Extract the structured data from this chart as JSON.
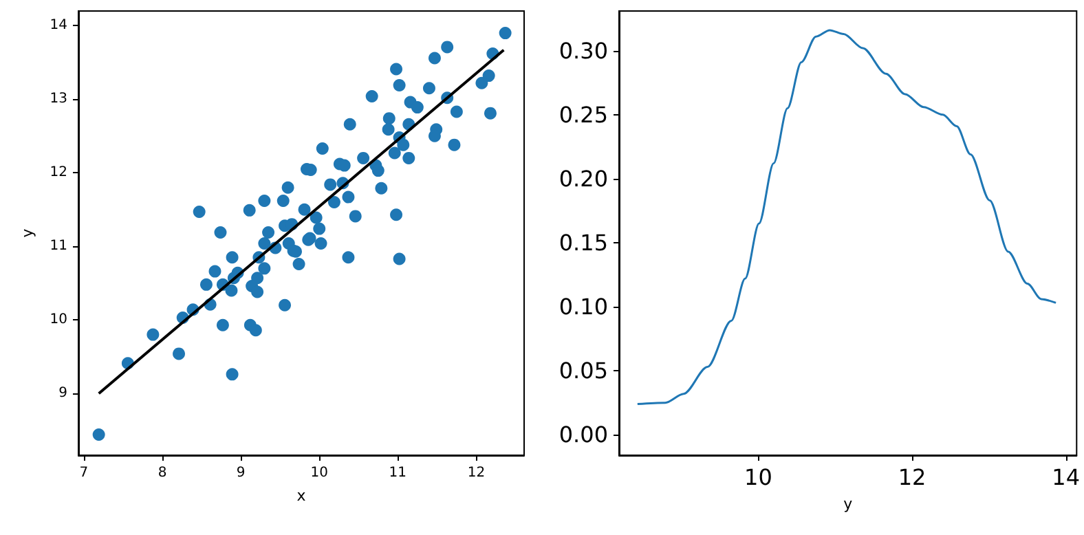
{
  "chart_data": [
    {
      "type": "scatter",
      "xlabel": "x",
      "ylabel": "y",
      "xlim": [
        6.93,
        12.61
      ],
      "ylim": [
        8.16,
        14.2
      ],
      "xticks": [
        7,
        8,
        9,
        10,
        11,
        12
      ],
      "yticks": [
        9,
        10,
        11,
        12,
        13,
        14
      ],
      "series": [
        {
          "marker": "circle",
          "color": "#1f77b4",
          "x": [
            7.19,
            7.56,
            7.88,
            8.21,
            8.26,
            8.39,
            8.89,
            8.77,
            9.12,
            9.19,
            9.56,
            8.74,
            8.47,
            9.11,
            9.3,
            9.54,
            12.37,
            11.63,
            11.47,
            12.21,
            10.98,
            11.02,
            12.16,
            12.07,
            10.67,
            11.4,
            11.63,
            11.16,
            11.25,
            11.75,
            12.18,
            10.39,
            10.89,
            10.88,
            11.14,
            11.49,
            11.47,
            11.72,
            11.02,
            11.07,
            10.96,
            11.14,
            10.04,
            10.56,
            10.26,
            10.32,
            9.89,
            10.72,
            10.75,
            10.79,
            10.14,
            10.3,
            10.37,
            10.19,
            9.6,
            9.81,
            9.96,
            10.46,
            10.98,
            9.56,
            9.65,
            10.0,
            9.86,
            10.02,
            9.61,
            9.67,
            9.74,
            10.37,
            11.02,
            9.84,
            8.89,
            9.3,
            9.35,
            9.23,
            8.67,
            8.56,
            8.88,
            8.61,
            9.21,
            9.3,
            9.14,
            9.21,
            8.96,
            8.91,
            8.77,
            9.7,
            9.44,
            9.88
          ],
          "values": [
            8.44,
            9.41,
            9.8,
            9.54,
            10.03,
            10.14,
            9.26,
            9.93,
            9.93,
            9.86,
            10.2,
            11.19,
            11.47,
            11.49,
            11.62,
            11.62,
            13.9,
            13.71,
            13.56,
            13.62,
            13.41,
            13.19,
            13.32,
            13.22,
            13.04,
            13.15,
            13.02,
            12.96,
            12.89,
            12.83,
            12.81,
            12.66,
            12.74,
            12.59,
            12.66,
            12.59,
            12.5,
            12.38,
            12.48,
            12.38,
            12.27,
            12.2,
            12.33,
            12.2,
            12.12,
            12.1,
            12.04,
            12.1,
            12.03,
            11.79,
            11.84,
            11.86,
            11.67,
            11.6,
            11.8,
            11.5,
            11.39,
            11.41,
            11.43,
            11.28,
            11.3,
            11.24,
            11.09,
            11.04,
            11.04,
            10.94,
            10.76,
            10.85,
            10.83,
            12.05,
            10.85,
            11.04,
            11.19,
            10.85,
            10.66,
            10.48,
            10.4,
            10.21,
            10.57,
            10.7,
            10.46,
            10.38,
            10.64,
            10.57,
            10.48,
            10.93,
            10.98,
            11.11
          ]
        },
        {
          "type": "line",
          "marker": "none",
          "color": "#000000",
          "x": [
            7.19,
            12.35
          ],
          "values": [
            9.0,
            13.67
          ]
        }
      ]
    },
    {
      "type": "line",
      "xlabel": "y",
      "xlim": [
        8.19,
        14.14
      ],
      "ylim": [
        -0.016,
        0.331
      ],
      "xticks": [
        10,
        12,
        14
      ],
      "yticks": [
        {
          "value": 0,
          "label": "0.00"
        },
        {
          "value": 0.05,
          "label": "0.05"
        },
        {
          "value": 0.1,
          "label": "0.10"
        },
        {
          "value": 0.15,
          "label": "0.15"
        },
        {
          "value": 0.2,
          "label": "0.20"
        },
        {
          "value": 0.25,
          "label": "0.25"
        },
        {
          "value": 0.3,
          "label": "0.30"
        }
      ],
      "series": [
        {
          "color": "#1f77b4",
          "x": [
            8.43,
            8.79,
            9.03,
            9.34,
            9.65,
            9.83,
            10.01,
            10.2,
            10.38,
            10.56,
            10.75,
            10.93,
            11.11,
            11.36,
            11.66,
            11.91,
            12.15,
            12.4,
            12.58,
            12.76,
            13.01,
            13.25,
            13.5,
            13.68,
            13.87
          ],
          "values": [
            0.024,
            0.025,
            0.032,
            0.053,
            0.089,
            0.122,
            0.165,
            0.212,
            0.255,
            0.291,
            0.311,
            0.316,
            0.313,
            0.302,
            0.282,
            0.266,
            0.256,
            0.25,
            0.241,
            0.219,
            0.183,
            0.143,
            0.118,
            0.106,
            0.103
          ]
        }
      ]
    }
  ]
}
